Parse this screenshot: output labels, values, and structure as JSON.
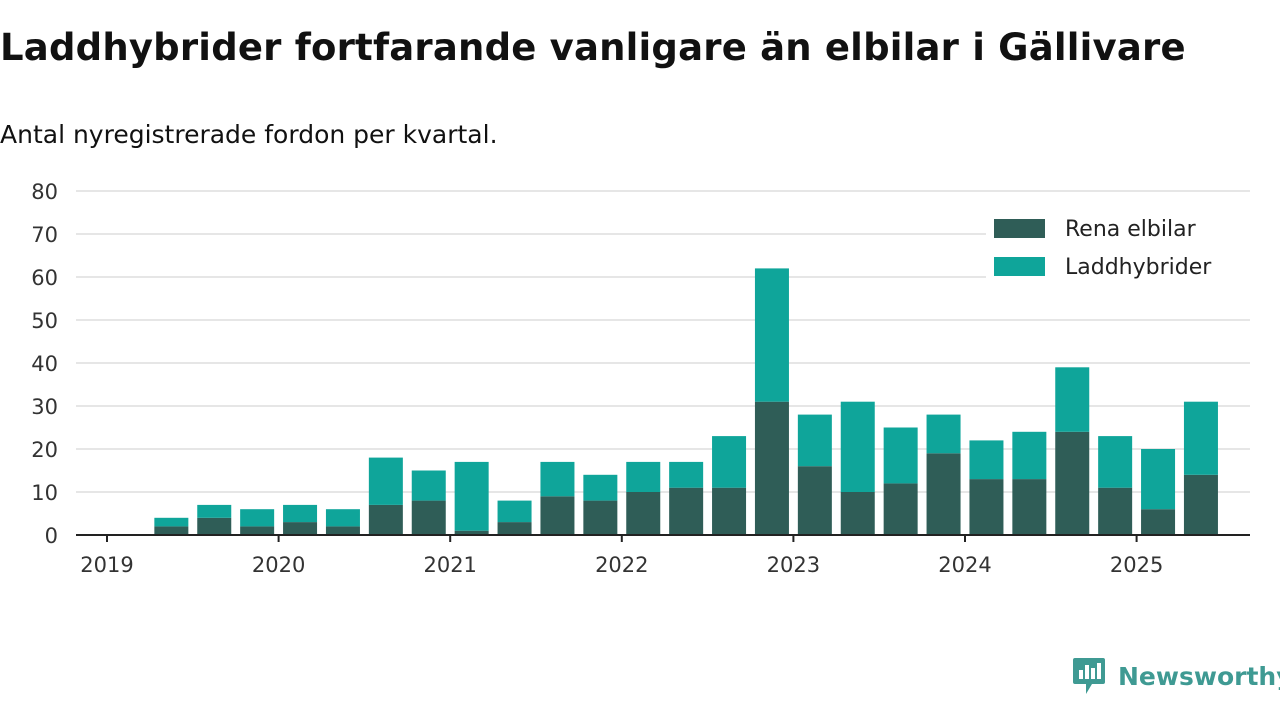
{
  "title": "Laddhybrider fortfarande vanligare än elbilar i Gällivare",
  "subtitle": "Antal nyregistrerade fordon per kvartal.",
  "brand": "Newsworthy",
  "colors": {
    "rena": "#2f5d57",
    "ladd": "#0fa59a",
    "brand": "#3f9a93",
    "grid": "#dddddd",
    "axis": "#222222"
  },
  "chart_data": {
    "type": "bar",
    "stacked": true,
    "categories": [
      "2019 Q2",
      "2019 Q3",
      "2019 Q4",
      "2020 Q1",
      "2020 Q2",
      "2020 Q3",
      "2020 Q4",
      "2021 Q1",
      "2021 Q2",
      "2021 Q3",
      "2021 Q4",
      "2022 Q1",
      "2022 Q2",
      "2022 Q3",
      "2022 Q4",
      "2023 Q1",
      "2023 Q2",
      "2023 Q3",
      "2023 Q4",
      "2024 Q1",
      "2024 Q2",
      "2024 Q3",
      "2024 Q4",
      "2025 Q1",
      "2025 Q2"
    ],
    "series": [
      {
        "name": "Rena elbilar",
        "values": [
          2,
          4,
          2,
          3,
          2,
          7,
          8,
          1,
          3,
          9,
          8,
          10,
          11,
          11,
          31,
          16,
          10,
          12,
          19,
          13,
          13,
          24,
          11,
          6,
          14
        ]
      },
      {
        "name": "Laddhybrider",
        "values": [
          2,
          3,
          4,
          4,
          4,
          11,
          7,
          16,
          5,
          8,
          6,
          7,
          6,
          12,
          31,
          12,
          21,
          13,
          9,
          9,
          11,
          15,
          12,
          14,
          17
        ]
      }
    ],
    "x_tick_labels": [
      "2019",
      "2020",
      "2021",
      "2022",
      "2023",
      "2024",
      "2025"
    ],
    "y_tick_labels": [
      "0",
      "10",
      "20",
      "30",
      "40",
      "50",
      "60",
      "70",
      "80"
    ],
    "ylim": [
      0,
      80
    ],
    "grid": true,
    "legend_position": "top-right"
  }
}
